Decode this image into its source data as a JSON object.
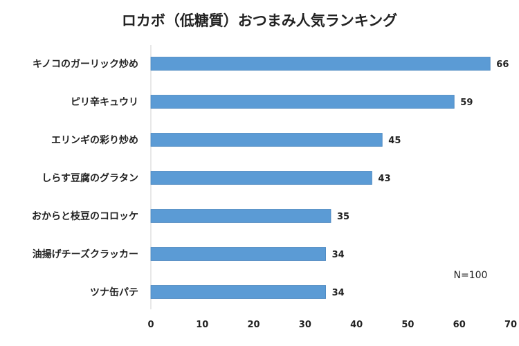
{
  "chart_data": {
    "type": "bar",
    "orientation": "horizontal",
    "title": "ロカボ（低糖質）おつまみ人気ランキング",
    "categories": [
      "キノコのガーリック炒め",
      "ピリ辛キュウリ",
      "エリンギの彩り炒め",
      "しらす豆腐のグラタン",
      "おからと枝豆のコロッケ",
      "油揚げチーズクラッカー",
      "ツナ缶パテ"
    ],
    "values": [
      66,
      59,
      45,
      43,
      35,
      34,
      34
    ],
    "xlim": [
      0,
      70
    ],
    "xticks": [
      0,
      10,
      20,
      30,
      40,
      50,
      60,
      70
    ],
    "xlabel": "",
    "ylabel": "",
    "grid": false,
    "legend": "none",
    "annotation": "N=100",
    "bar_color": "#5b9bd5"
  }
}
